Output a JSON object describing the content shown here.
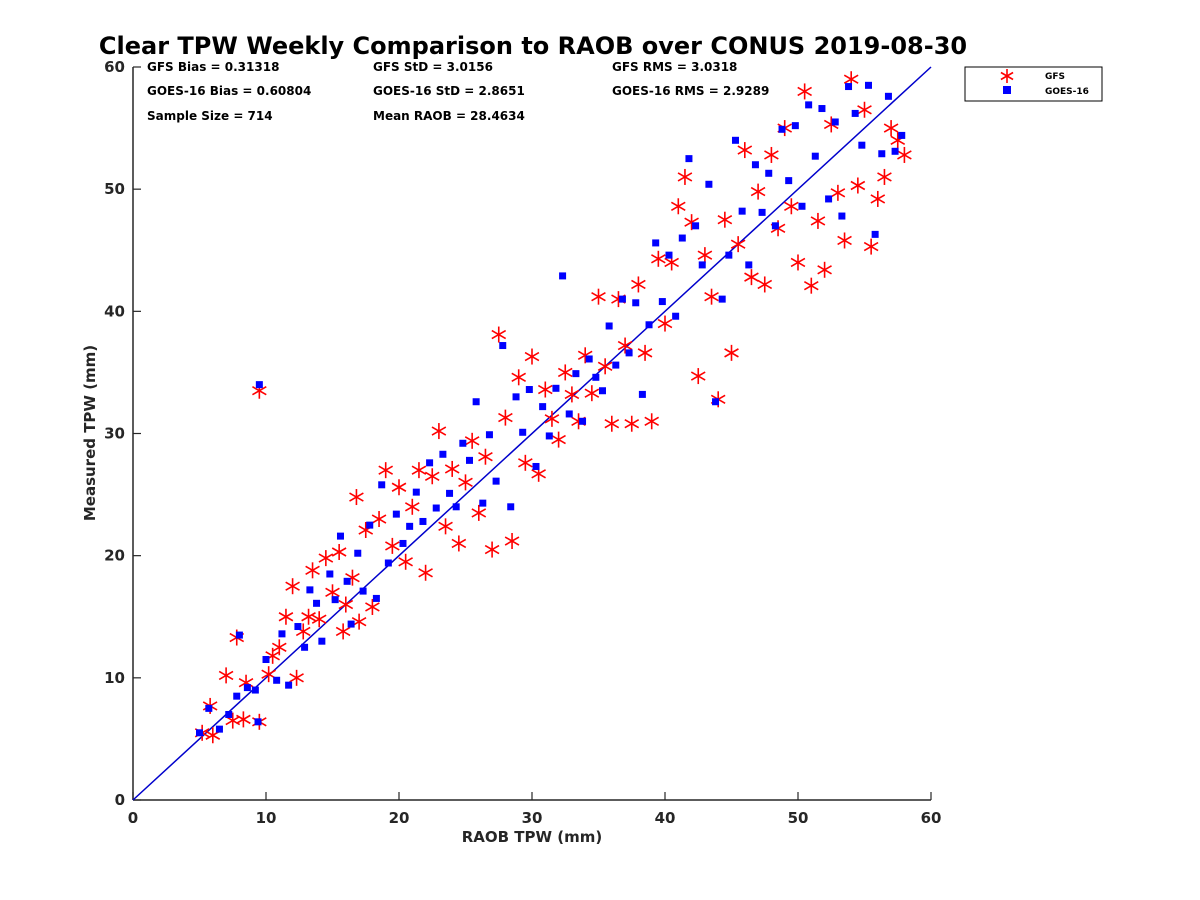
{
  "chart_data": {
    "type": "scatter",
    "title": "Clear TPW Weekly Comparison to RAOB over CONUS 2019-08-30",
    "xlabel": "RAOB TPW (mm)",
    "ylabel": "Measured TPW (mm)",
    "xlim": [
      0,
      60
    ],
    "ylim": [
      0,
      60
    ],
    "xticks": [
      0,
      10,
      20,
      30,
      40,
      50,
      60
    ],
    "yticks": [
      0,
      10,
      20,
      30,
      40,
      50,
      60
    ],
    "grid": false,
    "legend_position": "outside top-right",
    "reference_line": {
      "name": "1:1 line",
      "x": [
        0,
        60
      ],
      "y": [
        0,
        60
      ],
      "color": "#0000cc"
    },
    "stats": [
      "GFS Bias = 0.31318",
      "GFS StD = 3.0156",
      "GFS RMS = 3.0318",
      "GOES-16 Bias = 0.60804",
      "GOES-16 StD = 2.8651",
      "GOES-16 RMS = 2.9289",
      "Sample Size = 714",
      "Mean RAOB = 28.4634"
    ],
    "series": [
      {
        "name": "GFS",
        "marker": "asterisk",
        "color": "#ff0000",
        "points": [
          [
            5.2,
            5.5
          ],
          [
            5.8,
            7.7
          ],
          [
            6.0,
            5.3
          ],
          [
            7.0,
            10.2
          ],
          [
            7.5,
            6.5
          ],
          [
            7.8,
            13.3
          ],
          [
            8.3,
            6.6
          ],
          [
            8.5,
            9.6
          ],
          [
            9.5,
            6.4
          ],
          [
            9.5,
            33.5
          ],
          [
            10.2,
            10.3
          ],
          [
            10.5,
            11.8
          ],
          [
            11.0,
            12.5
          ],
          [
            11.5,
            15.0
          ],
          [
            12.0,
            17.5
          ],
          [
            12.3,
            10.0
          ],
          [
            12.8,
            13.8
          ],
          [
            13.2,
            15.0
          ],
          [
            13.5,
            18.8
          ],
          [
            14.0,
            14.8
          ],
          [
            14.5,
            19.8
          ],
          [
            15.0,
            17.0
          ],
          [
            15.5,
            20.3
          ],
          [
            15.8,
            13.8
          ],
          [
            16.0,
            16.0
          ],
          [
            16.5,
            18.2
          ],
          [
            16.8,
            24.8
          ],
          [
            17.0,
            14.6
          ],
          [
            17.5,
            22.1
          ],
          [
            18.0,
            15.8
          ],
          [
            18.5,
            23.0
          ],
          [
            19.0,
            27.0
          ],
          [
            19.5,
            20.8
          ],
          [
            20.0,
            25.6
          ],
          [
            20.5,
            19.5
          ],
          [
            21.0,
            24.0
          ],
          [
            21.5,
            27.0
          ],
          [
            22.0,
            18.6
          ],
          [
            22.5,
            26.5
          ],
          [
            23.0,
            30.2
          ],
          [
            23.5,
            22.4
          ],
          [
            24.0,
            27.1
          ],
          [
            24.5,
            21.0
          ],
          [
            25.0,
            26.0
          ],
          [
            25.5,
            29.4
          ],
          [
            26.0,
            23.5
          ],
          [
            26.5,
            28.1
          ],
          [
            27.0,
            20.5
          ],
          [
            27.5,
            38.1
          ],
          [
            28.0,
            31.3
          ],
          [
            28.5,
            21.2
          ],
          [
            29.0,
            34.6
          ],
          [
            29.5,
            27.6
          ],
          [
            30.0,
            36.3
          ],
          [
            30.5,
            26.7
          ],
          [
            31.0,
            33.6
          ],
          [
            31.5,
            31.2
          ],
          [
            32.0,
            29.5
          ],
          [
            32.5,
            35.0
          ],
          [
            33.0,
            33.2
          ],
          [
            33.5,
            31.0
          ],
          [
            34.0,
            36.4
          ],
          [
            34.5,
            33.3
          ],
          [
            35.0,
            41.2
          ],
          [
            35.5,
            35.5
          ],
          [
            36.0,
            30.8
          ],
          [
            36.5,
            41.0
          ],
          [
            37.0,
            37.2
          ],
          [
            37.5,
            30.8
          ],
          [
            38.0,
            42.2
          ],
          [
            38.5,
            36.6
          ],
          [
            39.0,
            31.0
          ],
          [
            39.5,
            44.3
          ],
          [
            40.0,
            39.0
          ],
          [
            40.5,
            44.0
          ],
          [
            41.0,
            48.6
          ],
          [
            41.5,
            51.0
          ],
          [
            42.0,
            47.3
          ],
          [
            42.5,
            34.7
          ],
          [
            43.0,
            44.6
          ],
          [
            43.5,
            41.2
          ],
          [
            44.0,
            32.8
          ],
          [
            44.5,
            47.5
          ],
          [
            45.0,
            36.6
          ],
          [
            45.5,
            45.5
          ],
          [
            46.0,
            53.2
          ],
          [
            46.5,
            42.8
          ],
          [
            47.0,
            49.8
          ],
          [
            47.5,
            42.2
          ],
          [
            48.0,
            52.8
          ],
          [
            48.5,
            46.8
          ],
          [
            49.0,
            55.0
          ],
          [
            49.5,
            48.6
          ],
          [
            50.0,
            44.0
          ],
          [
            50.5,
            58.0
          ],
          [
            51.0,
            42.1
          ],
          [
            51.5,
            47.4
          ],
          [
            52.0,
            43.4
          ],
          [
            52.5,
            55.3
          ],
          [
            53.0,
            49.7
          ],
          [
            53.5,
            45.8
          ],
          [
            54.0,
            59.0
          ],
          [
            54.5,
            50.3
          ],
          [
            55.0,
            56.5
          ],
          [
            55.5,
            45.3
          ],
          [
            56.0,
            49.2
          ],
          [
            56.5,
            51.0
          ],
          [
            57.0,
            55.0
          ],
          [
            57.5,
            54.0
          ],
          [
            58.0,
            52.8
          ]
        ]
      },
      {
        "name": "GOES-16",
        "marker": "square",
        "color": "#0000ff",
        "points": [
          [
            5.0,
            5.5
          ],
          [
            5.7,
            7.5
          ],
          [
            6.5,
            5.8
          ],
          [
            7.2,
            7.0
          ],
          [
            7.8,
            8.5
          ],
          [
            8.0,
            13.5
          ],
          [
            8.6,
            9.2
          ],
          [
            9.2,
            9.0
          ],
          [
            9.4,
            6.4
          ],
          [
            9.5,
            34.0
          ],
          [
            10.0,
            11.5
          ],
          [
            10.8,
            9.8
          ],
          [
            11.2,
            13.6
          ],
          [
            11.7,
            9.4
          ],
          [
            12.4,
            14.2
          ],
          [
            12.9,
            12.5
          ],
          [
            13.3,
            17.2
          ],
          [
            13.8,
            16.1
          ],
          [
            14.2,
            13.0
          ],
          [
            14.8,
            18.5
          ],
          [
            15.2,
            16.4
          ],
          [
            15.6,
            21.6
          ],
          [
            16.1,
            17.9
          ],
          [
            16.4,
            14.4
          ],
          [
            16.9,
            20.2
          ],
          [
            17.3,
            17.1
          ],
          [
            17.8,
            22.5
          ],
          [
            18.3,
            16.5
          ],
          [
            18.7,
            25.8
          ],
          [
            19.2,
            19.4
          ],
          [
            19.8,
            23.4
          ],
          [
            20.3,
            21.0
          ],
          [
            20.8,
            22.4
          ],
          [
            21.3,
            25.2
          ],
          [
            21.8,
            22.8
          ],
          [
            22.3,
            27.6
          ],
          [
            22.8,
            23.9
          ],
          [
            23.3,
            28.3
          ],
          [
            23.8,
            25.1
          ],
          [
            24.3,
            24.0
          ],
          [
            24.8,
            29.2
          ],
          [
            25.3,
            27.8
          ],
          [
            25.8,
            32.6
          ],
          [
            26.3,
            24.3
          ],
          [
            26.8,
            29.9
          ],
          [
            27.3,
            26.1
          ],
          [
            27.8,
            37.2
          ],
          [
            28.4,
            24.0
          ],
          [
            28.8,
            33.0
          ],
          [
            29.3,
            30.1
          ],
          [
            29.8,
            33.6
          ],
          [
            30.3,
            27.3
          ],
          [
            30.8,
            32.2
          ],
          [
            31.3,
            29.8
          ],
          [
            31.8,
            33.7
          ],
          [
            32.3,
            42.9
          ],
          [
            32.8,
            31.6
          ],
          [
            33.3,
            34.9
          ],
          [
            33.8,
            31.0
          ],
          [
            34.3,
            36.1
          ],
          [
            34.8,
            34.6
          ],
          [
            35.3,
            33.5
          ],
          [
            35.8,
            38.8
          ],
          [
            36.3,
            35.6
          ],
          [
            36.8,
            41.0
          ],
          [
            37.3,
            36.6
          ],
          [
            37.8,
            40.7
          ],
          [
            38.3,
            33.2
          ],
          [
            38.8,
            38.9
          ],
          [
            39.3,
            45.6
          ],
          [
            39.8,
            40.8
          ],
          [
            40.3,
            44.6
          ],
          [
            40.8,
            39.6
          ],
          [
            41.3,
            46.0
          ],
          [
            41.8,
            52.5
          ],
          [
            42.3,
            47.0
          ],
          [
            42.8,
            43.8
          ],
          [
            43.3,
            50.4
          ],
          [
            43.8,
            32.6
          ],
          [
            44.3,
            41.0
          ],
          [
            44.8,
            44.6
          ],
          [
            45.3,
            54.0
          ],
          [
            45.8,
            48.2
          ],
          [
            46.3,
            43.8
          ],
          [
            46.8,
            52.0
          ],
          [
            47.3,
            48.1
          ],
          [
            47.8,
            51.3
          ],
          [
            48.3,
            47.0
          ],
          [
            48.8,
            54.9
          ],
          [
            49.3,
            50.7
          ],
          [
            49.8,
            55.2
          ],
          [
            50.3,
            48.6
          ],
          [
            50.8,
            56.9
          ],
          [
            51.3,
            52.7
          ],
          [
            51.8,
            56.6
          ],
          [
            52.3,
            49.2
          ],
          [
            52.8,
            55.5
          ],
          [
            53.3,
            47.8
          ],
          [
            53.8,
            58.4
          ],
          [
            54.3,
            56.2
          ],
          [
            54.8,
            53.6
          ],
          [
            55.3,
            58.5
          ],
          [
            55.8,
            46.3
          ],
          [
            56.3,
            52.9
          ],
          [
            56.8,
            57.6
          ],
          [
            57.3,
            53.1
          ],
          [
            57.8,
            54.4
          ]
        ]
      }
    ]
  }
}
